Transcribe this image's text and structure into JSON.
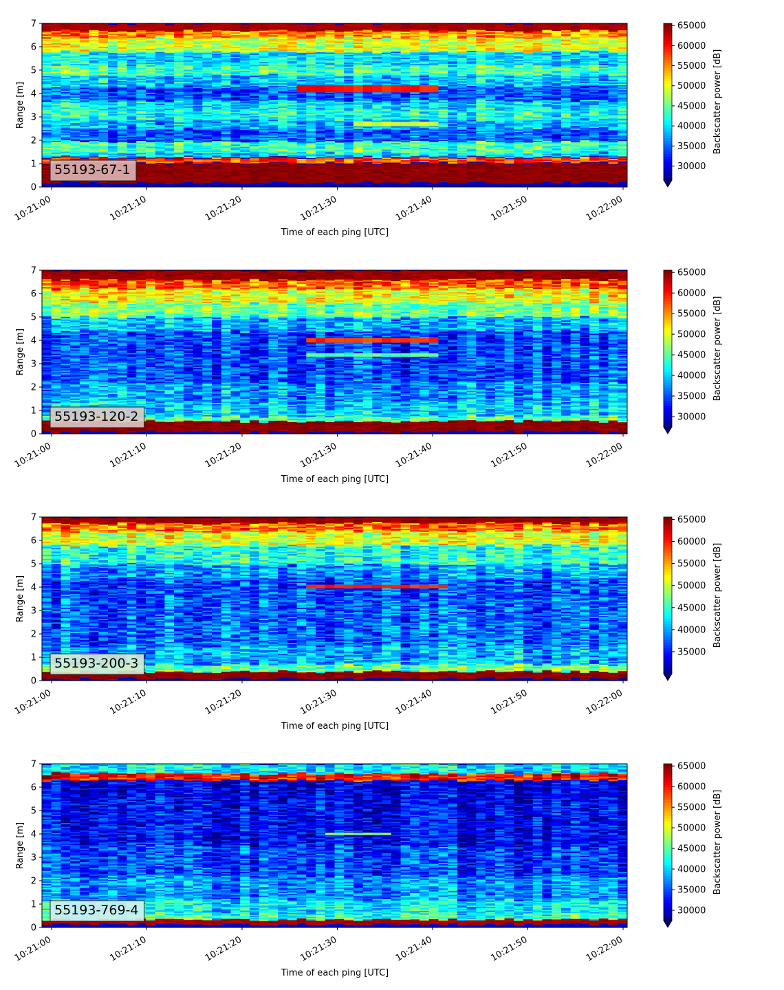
{
  "chart_data": [
    {
      "type": "heatmap",
      "label": "55193-67-1",
      "xlabel": "Time of each ping [UTC]",
      "ylabel": "Range [m]",
      "colorbar_label": "Backscatter power [dB]",
      "x_ticks": [
        "10:21:00",
        "10:21:10",
        "10:21:20",
        "10:21:30",
        "10:21:40",
        "10:21:50",
        "10:22:00"
      ],
      "y_ticks": [
        "0",
        "1",
        "2",
        "3",
        "4",
        "5",
        "6",
        "7"
      ],
      "ylim": [
        0,
        7
      ],
      "clim": [
        26500,
        65536
      ],
      "colorbar_ticks": [
        "30000",
        "35000",
        "40000",
        "45000",
        "50000",
        "55000",
        "60000",
        "65000"
      ],
      "label_box_color": "#dcb4b4",
      "colormap": "jet",
      "layers": [
        {
          "range": [
            0.2,
            1.0
          ],
          "value": 65000
        },
        {
          "range": [
            1.05,
            1.25
          ],
          "value": 58000
        },
        {
          "range": [
            1.3,
            1.5
          ],
          "value": 40000
        },
        {
          "range": [
            1.5,
            1.95
          ],
          "value": 43500
        },
        {
          "range": [
            2.0,
            2.5
          ],
          "value": 35000
        },
        {
          "range": [
            2.5,
            2.9
          ],
          "value": 38500
        },
        {
          "range": [
            2.9,
            3.3
          ],
          "value": 42000
        },
        {
          "range": [
            3.3,
            3.7
          ],
          "value": 40000
        },
        {
          "range": [
            3.7,
            4.3
          ],
          "value": 34500
        },
        {
          "range": [
            4.3,
            4.8
          ],
          "value": 39000
        },
        {
          "range": [
            4.8,
            5.2
          ],
          "value": 44000
        },
        {
          "range": [
            5.2,
            5.8
          ],
          "value": 40000
        },
        {
          "range": [
            5.8,
            6.4
          ],
          "value": 49500
        },
        {
          "range": [
            6.4,
            6.7
          ],
          "value": 55000
        },
        {
          "range": [
            6.7,
            7.0
          ],
          "value": 64000
        }
      ],
      "streaks": [
        {
          "t": [
            26,
            41
          ],
          "range": [
            4.05,
            4.35
          ],
          "value": 60000
        },
        {
          "t": [
            32,
            41
          ],
          "range": [
            2.6,
            2.8
          ],
          "value": 49000
        }
      ]
    },
    {
      "type": "heatmap",
      "label": "55193-120-2",
      "xlabel": "Time of each ping [UTC]",
      "ylabel": "Range [m]",
      "colorbar_label": "Backscatter power [dB]",
      "x_ticks": [
        "10:21:00",
        "10:21:10",
        "10:21:20",
        "10:21:30",
        "10:21:40",
        "10:21:50",
        "10:22:00"
      ],
      "y_ticks": [
        "0",
        "1",
        "2",
        "3",
        "4",
        "5",
        "6",
        "7"
      ],
      "ylim": [
        0,
        7
      ],
      "clim": [
        27500,
        65536
      ],
      "colorbar_ticks": [
        "30000",
        "35000",
        "40000",
        "45000",
        "50000",
        "55000",
        "60000",
        "65000"
      ],
      "label_box_color": "#dcc8c8",
      "colormap": "jet",
      "layers": [
        {
          "range": [
            0.1,
            0.55
          ],
          "value": 65000
        },
        {
          "range": [
            0.55,
            0.75
          ],
          "value": 45000
        },
        {
          "range": [
            0.75,
            1.4
          ],
          "value": 40000
        },
        {
          "range": [
            1.4,
            2.2
          ],
          "value": 38000
        },
        {
          "range": [
            2.2,
            3.5
          ],
          "value": 35000
        },
        {
          "range": [
            3.5,
            4.4
          ],
          "value": 34500
        },
        {
          "range": [
            4.4,
            5.0
          ],
          "value": 39000
        },
        {
          "range": [
            5.0,
            5.6
          ],
          "value": 46000
        },
        {
          "range": [
            5.6,
            6.2
          ],
          "value": 51000
        },
        {
          "range": [
            6.2,
            6.6
          ],
          "value": 57000
        },
        {
          "range": [
            6.6,
            7.0
          ],
          "value": 64500
        }
      ],
      "streaks": [
        {
          "t": [
            27,
            41
          ],
          "range": [
            3.9,
            4.1
          ],
          "value": 59000
        },
        {
          "t": [
            27,
            41
          ],
          "range": [
            3.3,
            3.45
          ],
          "value": 45000
        }
      ]
    },
    {
      "type": "heatmap",
      "label": "55193-200-3",
      "xlabel": "Time of each ping [UTC]",
      "ylabel": "Range [m]",
      "colorbar_label": "Backscatter power [dB]",
      "x_ticks": [
        "10:21:00",
        "10:21:10",
        "10:21:20",
        "10:21:30",
        "10:21:40",
        "10:21:50",
        "10:22:00"
      ],
      "y_ticks": [
        "0",
        "1",
        "2",
        "3",
        "4",
        "5",
        "6",
        "7"
      ],
      "ylim": [
        0,
        7
      ],
      "clim": [
        30000,
        65536
      ],
      "colorbar_ticks": [
        "35000",
        "40000",
        "45000",
        "50000",
        "55000",
        "60000",
        "65000"
      ],
      "label_box_color": "#d6ecd6",
      "colormap": "jet",
      "layers": [
        {
          "range": [
            0.1,
            0.4
          ],
          "value": 65000
        },
        {
          "range": [
            0.4,
            0.7
          ],
          "value": 47000
        },
        {
          "range": [
            0.7,
            1.5
          ],
          "value": 40500
        },
        {
          "range": [
            1.5,
            2.5
          ],
          "value": 38000
        },
        {
          "range": [
            2.5,
            3.5
          ],
          "value": 37500
        },
        {
          "range": [
            3.5,
            4.4
          ],
          "value": 37000
        },
        {
          "range": [
            4.4,
            5.0
          ],
          "value": 40000
        },
        {
          "range": [
            5.0,
            5.8
          ],
          "value": 44500
        },
        {
          "range": [
            5.8,
            6.4
          ],
          "value": 51000
        },
        {
          "range": [
            6.4,
            6.75
          ],
          "value": 57000
        },
        {
          "range": [
            6.75,
            7.0
          ],
          "value": 64500
        }
      ],
      "streaks": [
        {
          "t": [
            27,
            42
          ],
          "range": [
            3.95,
            4.1
          ],
          "value": 60000
        }
      ]
    },
    {
      "type": "heatmap",
      "label": "55193-769-4",
      "xlabel": "Time of each ping [UTC]",
      "ylabel": "Range [m]",
      "colorbar_label": "Backscatter power [dB]",
      "x_ticks": [
        "10:21:00",
        "10:21:10",
        "10:21:20",
        "10:21:30",
        "10:21:40",
        "10:21:50",
        "10:22:00"
      ],
      "y_ticks": [
        "0",
        "1",
        "2",
        "3",
        "4",
        "5",
        "6",
        "7"
      ],
      "ylim": [
        0,
        7
      ],
      "clim": [
        27500,
        65536
      ],
      "colorbar_ticks": [
        "30000",
        "35000",
        "40000",
        "45000",
        "50000",
        "55000",
        "60000",
        "65000"
      ],
      "label_box_color": "#d2f0f0",
      "colormap": "jet",
      "layers": [
        {
          "range": [
            0.15,
            0.35
          ],
          "value": 64000
        },
        {
          "range": [
            0.35,
            0.6
          ],
          "value": 43500
        },
        {
          "range": [
            0.6,
            1.2
          ],
          "value": 41000
        },
        {
          "range": [
            1.2,
            2.2
          ],
          "value": 37500
        },
        {
          "range": [
            2.2,
            3.5
          ],
          "value": 34500
        },
        {
          "range": [
            3.5,
            5.5
          ],
          "value": 32000
        },
        {
          "range": [
            5.5,
            6.3
          ],
          "value": 31000
        },
        {
          "range": [
            6.3,
            6.6
          ],
          "value": 60000
        },
        {
          "range": [
            6.6,
            7.0
          ],
          "value": 41000
        }
      ],
      "streaks": [
        {
          "t": [
            29,
            36
          ],
          "range": [
            3.95,
            4.05
          ],
          "value": 47000
        }
      ]
    }
  ]
}
